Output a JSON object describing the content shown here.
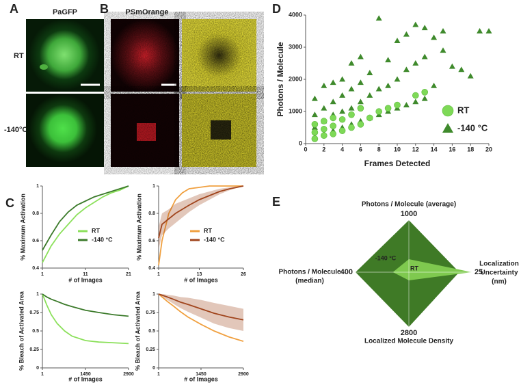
{
  "panel_labels": [
    "A",
    "B",
    "C",
    "D",
    "E"
  ],
  "images": {
    "a_title": "PaGFP",
    "b_title": "PSmOrange",
    "rows": [
      "RT",
      "-140°C"
    ]
  },
  "chart_data": [
    {
      "type": "scatter",
      "x_label": "Frames Detected",
      "y_label": "Photons / Molecule",
      "xlim": [
        0,
        20
      ],
      "xticks": [
        0,
        2,
        4,
        6,
        8,
        10,
        12,
        14,
        16,
        18,
        20
      ],
      "ylim": [
        0,
        4000
      ],
      "yticks": [
        0,
        1000,
        2000,
        3000,
        4000
      ],
      "series": [
        {
          "name": "RT",
          "marker": "circle",
          "color": "#7ed957",
          "x": [
            1,
            1,
            1,
            2,
            2,
            2,
            3,
            3,
            3,
            4,
            4,
            5,
            5,
            6,
            6,
            7,
            8,
            9,
            10,
            12,
            13
          ],
          "values": [
            150,
            350,
            600,
            250,
            450,
            700,
            300,
            550,
            800,
            400,
            750,
            500,
            900,
            600,
            1100,
            800,
            1000,
            1100,
            1200,
            1500,
            1600
          ]
        },
        {
          "name": "-140 °C",
          "marker": "triangle",
          "color": "#3f8a2c",
          "x": [
            1,
            1,
            1,
            1,
            2,
            2,
            2,
            2,
            3,
            3,
            3,
            3,
            4,
            4,
            4,
            4,
            5,
            5,
            5,
            5,
            6,
            6,
            6,
            6,
            7,
            7,
            7,
            8,
            8,
            8,
            9,
            9,
            9,
            10,
            10,
            10,
            11,
            11,
            11,
            12,
            12,
            12,
            13,
            13,
            13,
            14,
            14,
            15,
            15,
            16,
            17,
            18,
            19,
            20
          ],
          "values": [
            200,
            500,
            900,
            1400,
            300,
            700,
            1100,
            1800,
            400,
            900,
            1300,
            1900,
            500,
            1000,
            1500,
            2000,
            600,
            1100,
            1700,
            2500,
            700,
            1300,
            1900,
            2700,
            800,
            1500,
            2200,
            900,
            1700,
            3900,
            1000,
            1800,
            2600,
            1100,
            2000,
            3200,
            1200,
            2300,
            3400,
            1300,
            2500,
            3700,
            1400,
            2700,
            3600,
            1800,
            3300,
            2900,
            3500,
            2400,
            2300,
            2100,
            3500,
            3500
          ]
        }
      ]
    },
    {
      "type": "line",
      "x_label": "# of Images",
      "y_label": "% Maximum Activation",
      "xlim": [
        1,
        21
      ],
      "xticks": [
        1,
        11,
        21
      ],
      "ylim": [
        0.4,
        1
      ],
      "yticks": [
        0.4,
        0.6,
        0.8,
        1
      ],
      "series": [
        {
          "name": "RT",
          "color": "#8be05a",
          "x": [
            1,
            3,
            5,
            7,
            9,
            11,
            13,
            15,
            17,
            19,
            21
          ],
          "values": [
            0.44,
            0.56,
            0.65,
            0.72,
            0.79,
            0.84,
            0.88,
            0.92,
            0.95,
            0.97,
            1.0
          ]
        },
        {
          "name": "-140 °C",
          "color": "#3b7a2a",
          "x": [
            1,
            3,
            5,
            7,
            9,
            11,
            13,
            15,
            17,
            19,
            21
          ],
          "values": [
            0.53,
            0.64,
            0.74,
            0.81,
            0.86,
            0.89,
            0.92,
            0.94,
            0.96,
            0.98,
            1.0
          ]
        }
      ]
    },
    {
      "type": "line",
      "x_label": "# of Images",
      "y_label": "% Maximum Activation",
      "xlim": [
        1,
        26
      ],
      "xticks": [
        1,
        13,
        26
      ],
      "ylim": [
        0.4,
        1
      ],
      "yticks": [
        0.4,
        0.6,
        0.8,
        1
      ],
      "series": [
        {
          "name": "RT",
          "color": "#f0a040",
          "x": [
            1,
            2,
            4,
            6,
            8,
            10,
            13,
            16,
            19,
            22,
            26
          ],
          "values": [
            0.42,
            0.6,
            0.8,
            0.9,
            0.95,
            0.98,
            0.99,
            1,
            1,
            1,
            1
          ]
        },
        {
          "name": "-140 °C",
          "color": "#a0441c",
          "x": [
            1,
            2,
            4,
            6,
            8,
            10,
            13,
            16,
            19,
            22,
            26
          ],
          "values": [
            0.62,
            0.72,
            0.76,
            0.8,
            0.83,
            0.86,
            0.9,
            0.93,
            0.96,
            0.98,
            1.0
          ],
          "lower": [
            0.54,
            0.64,
            0.69,
            0.73,
            0.77,
            0.81,
            0.86,
            0.9,
            0.94,
            0.97,
            1.0
          ],
          "upper": [
            0.7,
            0.8,
            0.83,
            0.87,
            0.89,
            0.91,
            0.94,
            0.96,
            0.98,
            0.99,
            1.0
          ]
        }
      ]
    },
    {
      "type": "line",
      "x_label": "# of Images",
      "y_label": "% Bleach of Activated Area",
      "xlim": [
        1,
        2900
      ],
      "xticks": [
        1,
        1450,
        2900
      ],
      "ylim": [
        0,
        1
      ],
      "yticks": [
        0,
        0.25,
        0.5,
        0.75,
        1
      ],
      "series": [
        {
          "color": "#8be05a",
          "x": [
            1,
            150,
            300,
            500,
            750,
            1000,
            1450,
            1900,
            2400,
            2900
          ],
          "values": [
            1,
            0.85,
            0.72,
            0.6,
            0.5,
            0.43,
            0.37,
            0.35,
            0.34,
            0.33
          ]
        },
        {
          "color": "#3b7a2a",
          "x": [
            1,
            150,
            300,
            500,
            750,
            1000,
            1450,
            1900,
            2400,
            2900
          ],
          "values": [
            1,
            0.96,
            0.93,
            0.9,
            0.86,
            0.83,
            0.78,
            0.75,
            0.72,
            0.7
          ]
        }
      ]
    },
    {
      "type": "line",
      "x_label": "# of Images",
      "y_label": "% Bleach of Activated Area",
      "xlim": [
        1,
        2900
      ],
      "xticks": [
        1,
        1450,
        2900
      ],
      "ylim": [
        0,
        1
      ],
      "yticks": [
        0,
        0.25,
        0.5,
        0.75,
        1
      ],
      "series": [
        {
          "color": "#f0a040",
          "x": [
            1,
            150,
            300,
            500,
            750,
            1000,
            1450,
            1900,
            2400,
            2900
          ],
          "values": [
            1,
            0.95,
            0.9,
            0.84,
            0.76,
            0.69,
            0.59,
            0.5,
            0.42,
            0.36
          ]
        },
        {
          "color": "#a0441c",
          "x": [
            1,
            150,
            300,
            500,
            750,
            1000,
            1450,
            1900,
            2400,
            2900
          ],
          "values": [
            1,
            0.98,
            0.96,
            0.93,
            0.89,
            0.86,
            0.8,
            0.74,
            0.69,
            0.65
          ],
          "lower": [
            1,
            0.96,
            0.92,
            0.87,
            0.81,
            0.76,
            0.68,
            0.6,
            0.54,
            0.5
          ],
          "upper": [
            1,
            1,
            0.99,
            0.98,
            0.96,
            0.95,
            0.92,
            0.88,
            0.84,
            0.8
          ]
        }
      ]
    },
    {
      "type": "radar",
      "axes": [
        {
          "label": [
            "Photons / Molecule (average)"
          ],
          "max": 1000
        },
        {
          "label": [
            "Localization",
            "Uncertainty",
            "(nm)"
          ],
          "max": 25
        },
        {
          "label": [
            "Localized Molecule Density"
          ],
          "max": 2800
        },
        {
          "label": [
            "Photons / Molecule",
            "(median)"
          ],
          "max": 400
        }
      ],
      "series": [
        {
          "name": "-140 °C",
          "color": "#3f7a26",
          "values": [
            1000,
            20,
            2800,
            400
          ]
        },
        {
          "name": "RT",
          "color": "#7fc94f",
          "values": [
            250,
            25,
            420,
            120
          ]
        }
      ]
    }
  ]
}
